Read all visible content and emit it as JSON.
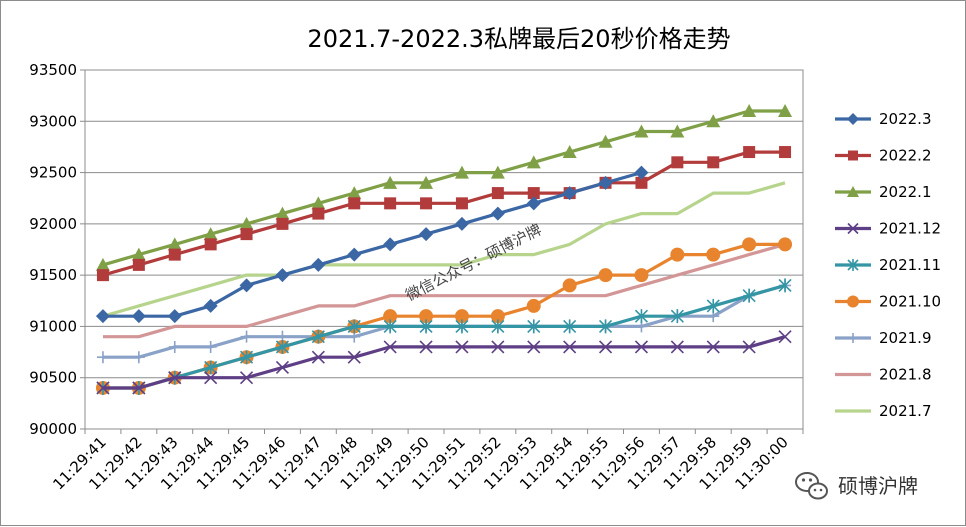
{
  "chart_data": {
    "type": "line",
    "title": "2021.7-2022.3私牌最后20秒价格走势",
    "xlabel": "",
    "ylabel": "",
    "ylim": [
      90000,
      93500
    ],
    "yticks": [
      90000,
      90500,
      91000,
      91500,
      92000,
      92500,
      93000,
      93500
    ],
    "grid": true,
    "legend": "right",
    "categories": [
      "11:29:41",
      "11:29:42",
      "11:29:43",
      "11:29:44",
      "11:29:45",
      "11:29:46",
      "11:29:47",
      "11:29:48",
      "11:29:49",
      "11:29:50",
      "11:29:51",
      "11:29:52",
      "11:29:53",
      "11:29:54",
      "11:29:55",
      "11:29:56",
      "11:29:57",
      "11:29:58",
      "11:29:59",
      "11:30:00"
    ],
    "series": [
      {
        "name": "2022.3",
        "color": "#3c67a5",
        "marker": "diamond",
        "values": [
          91100,
          91100,
          91100,
          91200,
          91400,
          91500,
          91600,
          91700,
          91800,
          91900,
          92000,
          92100,
          92200,
          92300,
          92400,
          92500,
          null,
          null,
          null,
          null
        ]
      },
      {
        "name": "2022.2",
        "color": "#b23b3b",
        "marker": "square",
        "values": [
          91500,
          91600,
          91700,
          91800,
          91900,
          92000,
          92100,
          92200,
          92200,
          92200,
          92200,
          92300,
          92300,
          92300,
          92400,
          92400,
          92600,
          92600,
          92700,
          92700
        ]
      },
      {
        "name": "2022.1",
        "color": "#7fa046",
        "marker": "triangle",
        "values": [
          91600,
          91700,
          91800,
          91900,
          92000,
          92100,
          92200,
          92300,
          92400,
          92400,
          92500,
          92500,
          92600,
          92700,
          92800,
          92900,
          92900,
          93000,
          93100,
          93100
        ]
      },
      {
        "name": "2021.12",
        "color": "#5e3f85",
        "marker": "x",
        "values": [
          90400,
          90400,
          90500,
          90500,
          90500,
          90600,
          90700,
          90700,
          90800,
          90800,
          90800,
          90800,
          90800,
          90800,
          90800,
          90800,
          90800,
          90800,
          90800,
          90900
        ]
      },
      {
        "name": "2021.11",
        "color": "#3495a5",
        "marker": "star",
        "values": [
          90400,
          90400,
          90500,
          90600,
          90700,
          90800,
          90900,
          91000,
          91000,
          91000,
          91000,
          91000,
          91000,
          91000,
          91000,
          91100,
          91100,
          91200,
          91300,
          91400
        ]
      },
      {
        "name": "2021.10",
        "color": "#e8842e",
        "marker": "circle",
        "values": [
          90400,
          90400,
          90500,
          90600,
          90700,
          90800,
          90900,
          91000,
          91100,
          91100,
          91100,
          91100,
          91200,
          91400,
          91500,
          91500,
          91700,
          91700,
          91800,
          91800
        ]
      },
      {
        "name": "2021.9",
        "color": "#8aa2c8",
        "marker": "plus",
        "values": [
          90700,
          90700,
          90800,
          90800,
          90900,
          90900,
          90900,
          90900,
          91000,
          91000,
          91000,
          91000,
          91000,
          91000,
          91000,
          91000,
          91100,
          91100,
          91300,
          91400
        ]
      },
      {
        "name": "2021.8",
        "color": "#d39696",
        "marker": "none",
        "values": [
          90900,
          90900,
          91000,
          91000,
          91000,
          91100,
          91200,
          91200,
          91300,
          91300,
          91300,
          91300,
          91300,
          91300,
          91300,
          91400,
          91500,
          91600,
          91700,
          91800
        ]
      },
      {
        "name": "2021.7",
        "color": "#b7d48d",
        "marker": "none",
        "values": [
          91100,
          91200,
          91300,
          91400,
          91500,
          91500,
          91600,
          91600,
          91600,
          91600,
          91600,
          91700,
          91700,
          91800,
          92000,
          92100,
          92100,
          92300,
          92300,
          92400
        ]
      }
    ],
    "annotations": [
      "微信公众号：硕博沪牌"
    ]
  },
  "logo": {
    "text": "硕博沪牌",
    "icon": "wechat-icon"
  }
}
